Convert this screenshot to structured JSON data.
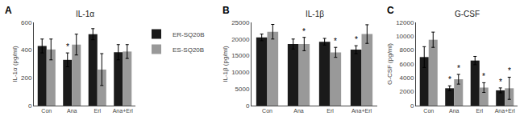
{
  "chart_data": [
    {
      "type": "bar",
      "label": "A",
      "title": "IL-1α",
      "ylabel": "IL-1α (pg/ml)",
      "categories": [
        "Con",
        "Ana",
        "Erl",
        "Ana+Erl"
      ],
      "series": [
        {
          "name": "ER-SQ20B",
          "color": "#1a1a1a",
          "values": [
            430,
            330,
            515,
            385
          ],
          "errors": [
            50,
            50,
            40,
            55
          ],
          "annotations": [
            null,
            "*",
            null,
            null
          ]
        },
        {
          "name": "ES-SQ20B",
          "color": "#999999",
          "values": [
            405,
            440,
            260,
            390
          ],
          "errors": [
            75,
            75,
            115,
            50
          ],
          "annotations": [
            null,
            null,
            null,
            null
          ]
        }
      ],
      "ylim": [
        0,
        600
      ],
      "yticks": [
        0,
        200,
        400,
        600
      ],
      "grid": false,
      "legend": "upper right"
    },
    {
      "type": "bar",
      "label": "B",
      "title": "IL-1β",
      "ylabel": "IL-1β (pg/ml)",
      "categories": [
        "Con",
        "Ana",
        "Erl",
        "Ana+Erl"
      ],
      "series": [
        {
          "color": "#1a1a1a",
          "values": [
            20500,
            18500,
            19200,
            16800
          ],
          "errors": [
            1000,
            1500,
            1000,
            1200
          ],
          "annotations": [
            null,
            null,
            null,
            "*"
          ]
        },
        {
          "color": "#999999",
          "values": [
            22200,
            18500,
            16000,
            21500
          ],
          "errors": [
            2200,
            2000,
            1500,
            2800
          ],
          "annotations": [
            null,
            "*",
            "*",
            null
          ]
        }
      ],
      "ylim": [
        0,
        25000
      ],
      "yticks": [
        0,
        5000,
        10000,
        15000,
        20000,
        25000
      ],
      "grid": false
    },
    {
      "type": "bar",
      "label": "C",
      "title": "G-CSF",
      "ylabel": "G-CSF (pg/ml)",
      "categories": [
        "Con",
        "Ana",
        "Erl",
        "Ana+Erl"
      ],
      "series": [
        {
          "color": "#1a1a1a",
          "values": [
            7000,
            2500,
            6500,
            2200
          ],
          "errors": [
            1500,
            350,
            600,
            350
          ],
          "annotations": [
            null,
            "*",
            null,
            "*"
          ]
        },
        {
          "color": "#999999",
          "values": [
            9500,
            3800,
            2600,
            2500
          ],
          "errors": [
            1100,
            700,
            700,
            1600
          ],
          "annotations": [
            null,
            "*",
            "*",
            "*"
          ]
        }
      ],
      "ylim": [
        0,
        12000
      ],
      "yticks": [
        0,
        2000,
        4000,
        6000,
        8000,
        10000,
        12000
      ],
      "grid": false
    }
  ]
}
